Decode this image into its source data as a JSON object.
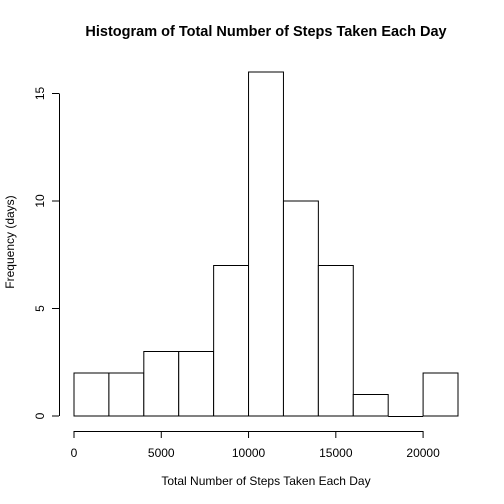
{
  "chart_data": {
    "type": "bar",
    "title": "Histogram of Total Number of Steps Taken Each Day",
    "xlabel": "Total Number of Steps Taken Each Day",
    "ylabel": "Frequency (days)",
    "bins": [
      {
        "from": 0,
        "to": 2000,
        "count": 2
      },
      {
        "from": 2000,
        "to": 4000,
        "count": 2
      },
      {
        "from": 4000,
        "to": 6000,
        "count": 3
      },
      {
        "from": 6000,
        "to": 8000,
        "count": 3
      },
      {
        "from": 8000,
        "to": 10000,
        "count": 7
      },
      {
        "from": 10000,
        "to": 12000,
        "count": 16
      },
      {
        "from": 12000,
        "to": 14000,
        "count": 10
      },
      {
        "from": 14000,
        "to": 16000,
        "count": 7
      },
      {
        "from": 16000,
        "to": 18000,
        "count": 1
      },
      {
        "from": 18000,
        "to": 20000,
        "count": 0
      },
      {
        "from": 20000,
        "to": 22000,
        "count": 2
      }
    ],
    "xlim": [
      0,
      22000
    ],
    "ylim": [
      0,
      16
    ],
    "xticks": [
      0,
      5000,
      10000,
      15000,
      20000
    ],
    "yticks": [
      0,
      5,
      10,
      15
    ],
    "grid": false,
    "legend": "none",
    "bar_fill": "#ffffff",
    "bar_stroke": "#000000"
  }
}
